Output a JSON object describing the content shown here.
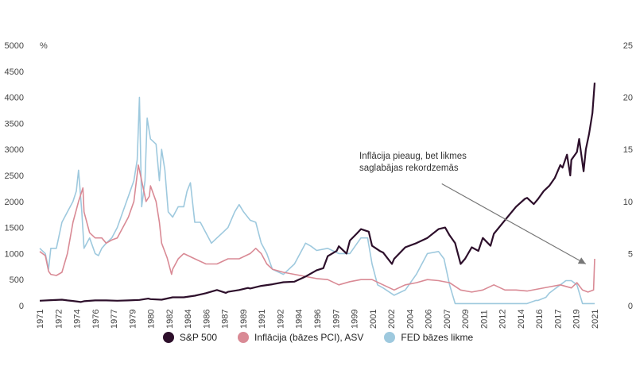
{
  "colors": {
    "sp500": "#2d0f2b",
    "inflation": "#d98a95",
    "fed": "#9ec9de",
    "arrow": "#777777"
  },
  "chart_data": {
    "type": "line",
    "left_axis": {
      "unit": "",
      "ticks": [
        "0",
        "500",
        "1000",
        "1500",
        "2000",
        "2500",
        "3000",
        "3500",
        "4000",
        "4500",
        "5000"
      ],
      "range": [
        0,
        5000
      ]
    },
    "right_axis": {
      "unit": "%",
      "ticks": [
        "0",
        "5",
        "10",
        "15",
        "20",
        "25"
      ],
      "range": [
        0,
        25
      ]
    },
    "x_ticks": [
      "1971",
      "1972",
      "1974",
      "1976",
      "1977",
      "1979",
      "1980",
      "1982",
      "1984",
      "1986",
      "1987",
      "1989",
      "1991",
      "1992",
      "1994",
      "1996",
      "1997",
      "1999",
      "2001",
      "2002",
      "2004",
      "2006",
      "2007",
      "2009",
      "2011",
      "2012",
      "2014",
      "2016",
      "2017",
      "2019",
      "2021"
    ],
    "x_range": [
      1971,
      2021.1
    ],
    "series": [
      {
        "name": "S&P 500",
        "axis": "left",
        "points": [
          [
            1971,
            95
          ],
          [
            1972,
            105
          ],
          [
            1973,
            115
          ],
          [
            1973.5,
            100
          ],
          [
            1974,
            90
          ],
          [
            1974.7,
            70
          ],
          [
            1975,
            85
          ],
          [
            1976,
            100
          ],
          [
            1977,
            100
          ],
          [
            1978,
            95
          ],
          [
            1979,
            100
          ],
          [
            1980,
            110
          ],
          [
            1980.8,
            135
          ],
          [
            1981,
            125
          ],
          [
            1982,
            115
          ],
          [
            1983,
            160
          ],
          [
            1984,
            160
          ],
          [
            1985,
            190
          ],
          [
            1986,
            240
          ],
          [
            1987,
            300
          ],
          [
            1987.8,
            245
          ],
          [
            1988,
            265
          ],
          [
            1989,
            300
          ],
          [
            1989.8,
            340
          ],
          [
            1990,
            330
          ],
          [
            1991,
            380
          ],
          [
            1992,
            410
          ],
          [
            1993,
            450
          ],
          [
            1994,
            460
          ],
          [
            1995,
            560
          ],
          [
            1996,
            680
          ],
          [
            1996.6,
            720
          ],
          [
            1997,
            950
          ],
          [
            1997.8,
            1050
          ],
          [
            1998,
            1140
          ],
          [
            1998.7,
            1000
          ],
          [
            1999,
            1250
          ],
          [
            1999.6,
            1380
          ],
          [
            2000,
            1470
          ],
          [
            2000.7,
            1420
          ],
          [
            2001,
            1150
          ],
          [
            2001.7,
            1050
          ],
          [
            2002,
            1020
          ],
          [
            2002.8,
            800
          ],
          [
            2003,
            900
          ],
          [
            2004,
            1120
          ],
          [
            2005,
            1200
          ],
          [
            2006,
            1300
          ],
          [
            2007,
            1470
          ],
          [
            2007.6,
            1500
          ],
          [
            2008,
            1350
          ],
          [
            2008.5,
            1200
          ],
          [
            2009,
            800
          ],
          [
            2009.4,
            900
          ],
          [
            2010,
            1120
          ],
          [
            2010.6,
            1050
          ],
          [
            2011,
            1300
          ],
          [
            2011.7,
            1150
          ],
          [
            2012,
            1380
          ],
          [
            2013,
            1640
          ],
          [
            2014,
            1900
          ],
          [
            2014.8,
            2050
          ],
          [
            2015,
            2070
          ],
          [
            2015.6,
            1950
          ],
          [
            2016,
            2050
          ],
          [
            2016.5,
            2200
          ],
          [
            2017,
            2300
          ],
          [
            2017.5,
            2450
          ],
          [
            2018,
            2700
          ],
          [
            2018.2,
            2650
          ],
          [
            2018.6,
            2900
          ],
          [
            2018.9,
            2500
          ],
          [
            2019,
            2800
          ],
          [
            2019.5,
            2950
          ],
          [
            2019.7,
            3200
          ],
          [
            2020.1,
            2580
          ],
          [
            2020.3,
            3000
          ],
          [
            2020.6,
            3300
          ],
          [
            2020.9,
            3700
          ],
          [
            2021.1,
            4280
          ]
        ]
      },
      {
        "name": "Inflācija (bāzes PCI), ASV",
        "axis": "right",
        "points": [
          [
            1971,
            5.2
          ],
          [
            1971.5,
            4.8
          ],
          [
            1971.8,
            3.3
          ],
          [
            1972,
            3.0
          ],
          [
            1972.5,
            2.9
          ],
          [
            1973,
            3.2
          ],
          [
            1973.5,
            5
          ],
          [
            1974,
            8
          ],
          [
            1974.5,
            10
          ],
          [
            1974.9,
            11.3
          ],
          [
            1975,
            9
          ],
          [
            1975.5,
            7
          ],
          [
            1976,
            6.5
          ],
          [
            1976.6,
            6.5
          ],
          [
            1977,
            6
          ],
          [
            1977.5,
            6.3
          ],
          [
            1978,
            6.5
          ],
          [
            1978.5,
            7.5
          ],
          [
            1979,
            8.5
          ],
          [
            1979.5,
            10
          ],
          [
            1979.9,
            13.5
          ],
          [
            1980.2,
            12
          ],
          [
            1980.6,
            10
          ],
          [
            1980.9,
            10.5
          ],
          [
            1981,
            11.5
          ],
          [
            1981.5,
            10
          ],
          [
            1981.8,
            8
          ],
          [
            1982,
            6
          ],
          [
            1982.5,
            4.6
          ],
          [
            1982.9,
            3
          ],
          [
            1983,
            3.5
          ],
          [
            1983.5,
            4.5
          ],
          [
            1984,
            5
          ],
          [
            1985,
            4.5
          ],
          [
            1986,
            4
          ],
          [
            1987,
            4
          ],
          [
            1988,
            4.5
          ],
          [
            1989,
            4.5
          ],
          [
            1990,
            5
          ],
          [
            1990.5,
            5.5
          ],
          [
            1991,
            5
          ],
          [
            1991.5,
            4
          ],
          [
            1992,
            3.5
          ],
          [
            1993,
            3.2
          ],
          [
            1994,
            3
          ],
          [
            1995,
            2.8
          ],
          [
            1996,
            2.6
          ],
          [
            1997,
            2.5
          ],
          [
            1998,
            2
          ],
          [
            1999,
            2.3
          ],
          [
            2000,
            2.5
          ],
          [
            2001,
            2.5
          ],
          [
            2002,
            2
          ],
          [
            2003,
            1.5
          ],
          [
            2004,
            2
          ],
          [
            2005,
            2.2
          ],
          [
            2006,
            2.5
          ],
          [
            2007,
            2.4
          ],
          [
            2008,
            2.2
          ],
          [
            2009,
            1.5
          ],
          [
            2010,
            1.3
          ],
          [
            2011,
            1.5
          ],
          [
            2012,
            2
          ],
          [
            2013,
            1.5
          ],
          [
            2014,
            1.5
          ],
          [
            2015,
            1.4
          ],
          [
            2016,
            1.6
          ],
          [
            2017,
            1.8
          ],
          [
            2018,
            2
          ],
          [
            2019,
            1.7
          ],
          [
            2019.5,
            2.2
          ],
          [
            2020,
            1.5
          ],
          [
            2020.5,
            1.3
          ],
          [
            2021,
            1.5
          ],
          [
            2021.1,
            4.5
          ]
        ]
      },
      {
        "name": "FED bāzes likme",
        "axis": "right",
        "points": [
          [
            1971,
            5.5
          ],
          [
            1971.5,
            5
          ],
          [
            1971.8,
            3.5
          ],
          [
            1972,
            5.5
          ],
          [
            1972.5,
            5.5
          ],
          [
            1973,
            8
          ],
          [
            1973.5,
            9
          ],
          [
            1974,
            10
          ],
          [
            1974.3,
            11
          ],
          [
            1974.5,
            13
          ],
          [
            1974.8,
            9
          ],
          [
            1975,
            5.5
          ],
          [
            1975.5,
            6.5
          ],
          [
            1976,
            5
          ],
          [
            1976.3,
            4.8
          ],
          [
            1976.6,
            5.5
          ],
          [
            1977,
            6
          ],
          [
            1977.5,
            6.5
          ],
          [
            1978,
            7.5
          ],
          [
            1978.5,
            9
          ],
          [
            1979,
            10.5
          ],
          [
            1979.5,
            12
          ],
          [
            1979.8,
            14
          ],
          [
            1980,
            20
          ],
          [
            1980.2,
            9.5
          ],
          [
            1980.5,
            12
          ],
          [
            1980.7,
            18
          ],
          [
            1981,
            16
          ],
          [
            1981.5,
            15.5
          ],
          [
            1981.8,
            12
          ],
          [
            1982,
            15
          ],
          [
            1982.3,
            13
          ],
          [
            1982.6,
            9
          ],
          [
            1983,
            8.5
          ],
          [
            1983.5,
            9.5
          ],
          [
            1984,
            9.5
          ],
          [
            1984.3,
            11
          ],
          [
            1984.6,
            11.8
          ],
          [
            1985,
            8
          ],
          [
            1985.5,
            8
          ],
          [
            1986,
            7
          ],
          [
            1986.5,
            6
          ],
          [
            1987,
            6.5
          ],
          [
            1987.5,
            7
          ],
          [
            1988,
            7.5
          ],
          [
            1988.6,
            9
          ],
          [
            1989,
            9.7
          ],
          [
            1989.4,
            9
          ],
          [
            1990,
            8.2
          ],
          [
            1990.5,
            8
          ],
          [
            1991,
            6
          ],
          [
            1991.5,
            5
          ],
          [
            1992,
            3.5
          ],
          [
            1993,
            3
          ],
          [
            1994,
            4
          ],
          [
            1995,
            6
          ],
          [
            1995.5,
            5.7
          ],
          [
            1996,
            5.3
          ],
          [
            1997,
            5.5
          ],
          [
            1998,
            5
          ],
          [
            1999,
            5
          ],
          [
            2000,
            6.5
          ],
          [
            2000.6,
            6.5
          ],
          [
            2001,
            4
          ],
          [
            2001.5,
            2
          ],
          [
            2002,
            1.7
          ],
          [
            2003,
            1
          ],
          [
            2004,
            1.5
          ],
          [
            2005,
            3
          ],
          [
            2006,
            5
          ],
          [
            2007,
            5.2
          ],
          [
            2007.5,
            4.5
          ],
          [
            2008,
            2
          ],
          [
            2008.5,
            0.2
          ],
          [
            2009,
            0.2
          ],
          [
            2010,
            0.2
          ],
          [
            2011,
            0.2
          ],
          [
            2012,
            0.2
          ],
          [
            2013,
            0.2
          ],
          [
            2014,
            0.2
          ],
          [
            2015,
            0.2
          ],
          [
            2015.8,
            0.5
          ],
          [
            2016,
            0.5
          ],
          [
            2016.7,
            0.8
          ],
          [
            2017,
            1.2
          ],
          [
            2017.5,
            1.6
          ],
          [
            2018,
            2
          ],
          [
            2018.5,
            2.4
          ],
          [
            2019,
            2.4
          ],
          [
            2019.5,
            2
          ],
          [
            2020,
            0.2
          ],
          [
            2021.1,
            0.2
          ]
        ]
      }
    ],
    "annotation": {
      "line1": "Inflācija pieaug, bet likmes",
      "line2": "saglabājas rekordzemās",
      "arrow_from": [
        2007.3,
        11.7
      ],
      "arrow_to": [
        2020.3,
        4.0
      ]
    },
    "legend_position": "bottom"
  }
}
